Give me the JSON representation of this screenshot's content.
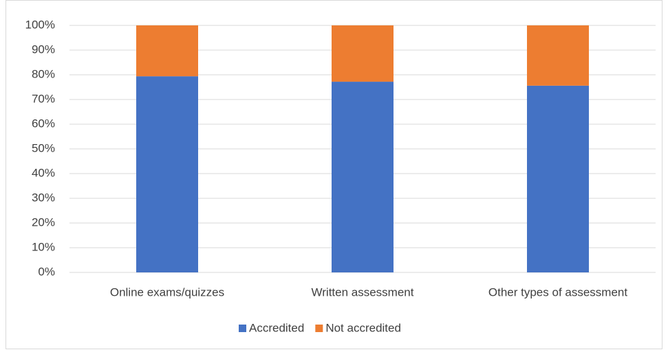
{
  "chart_data": {
    "type": "stacked_bar",
    "categories": [
      "Online exams/quizzes",
      "Written assessment",
      "Other types of assessment"
    ],
    "series": [
      {
        "name": "Accredited",
        "color": "#4472c4",
        "values": [
          79.4,
          77.2,
          75.6
        ]
      },
      {
        "name": "Not accredited",
        "color": "#ed7d31",
        "values": [
          20.6,
          22.8,
          24.4
        ]
      }
    ],
    "ylim": [
      0,
      100
    ],
    "yticks": [
      {
        "value": 0,
        "label": "0%"
      },
      {
        "value": 10,
        "label": "10%"
      },
      {
        "value": 20,
        "label": "20%"
      },
      {
        "value": 30,
        "label": "30%"
      },
      {
        "value": 40,
        "label": "40%"
      },
      {
        "value": 50,
        "label": "50%"
      },
      {
        "value": 60,
        "label": "60%"
      },
      {
        "value": 70,
        "label": "70%"
      },
      {
        "value": 80,
        "label": "80%"
      },
      {
        "value": 90,
        "label": "90%"
      },
      {
        "value": 100,
        "label": "100%"
      }
    ],
    "grid": true,
    "legend": "bottom"
  }
}
